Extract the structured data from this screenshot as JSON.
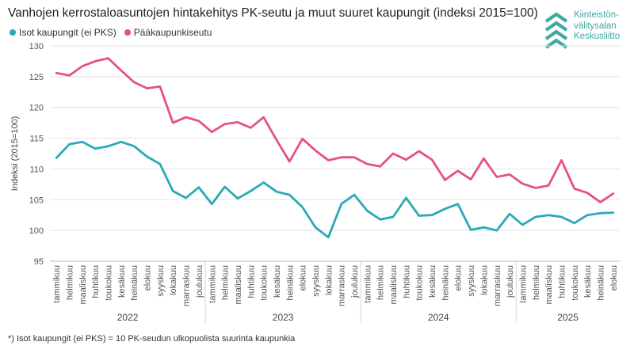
{
  "chart_data": {
    "type": "line",
    "title": "Vanhojen kerrostaloasuntojen hintakehitys PK-seutu ja muut suuret kaupungit (indeksi 2015=100)",
    "xlabel": "",
    "ylabel": "Indeksi (2015=100)",
    "ylim": [
      95,
      130
    ],
    "yticks": [
      95,
      100,
      105,
      110,
      115,
      120,
      125,
      130
    ],
    "grid": true,
    "legend_position": "top-left",
    "categories": [
      "tammikuu",
      "helmikuu",
      "maaliskuu",
      "huhtikuu",
      "toukokuu",
      "kesäkuu",
      "heinäkuu",
      "elokuu",
      "syyskuu",
      "lokakuu",
      "marraskuu",
      "joulukuu",
      "tammikuu",
      "helmikuu",
      "maaliskuu",
      "huhtikuu",
      "toukokuu",
      "kesäkuu",
      "heinäkuu",
      "elokuu",
      "syyskuu",
      "lokakuu",
      "marraskuu",
      "joulukuu",
      "tammikuu",
      "helmikuu",
      "maaliskuu",
      "huhtikuu",
      "toukokuu",
      "kesäkuu",
      "heinäkuu",
      "elokuu",
      "syyskuu",
      "lokakuu",
      "marraskuu",
      "joulukuu",
      "tammikuu",
      "helmikuu",
      "maaliskuu",
      "huhtikuu",
      "toukokuu",
      "kesäkuu",
      "heinäkuu",
      "elokuu"
    ],
    "years": [
      {
        "label": "2022",
        "months": 12
      },
      {
        "label": "2023",
        "months": 12
      },
      {
        "label": "2024",
        "months": 12
      },
      {
        "label": "2025",
        "months": 8
      }
    ],
    "series": [
      {
        "name": "Isot kaupungit (ei PKS)",
        "color": "#2aa9b6",
        "values": [
          111.8,
          114.0,
          114.4,
          113.3,
          113.7,
          114.4,
          113.7,
          112.0,
          110.8,
          106.4,
          105.3,
          107.0,
          104.3,
          107.1,
          105.2,
          106.4,
          107.8,
          106.3,
          105.8,
          103.8,
          100.5,
          98.9,
          104.3,
          105.8,
          103.2,
          101.8,
          102.2,
          105.3,
          102.4,
          102.5,
          103.5,
          104.3,
          100.1,
          100.5,
          100.0,
          102.7,
          100.9,
          102.2,
          102.5,
          102.2,
          101.2,
          102.5,
          102.8,
          102.9
        ]
      },
      {
        "name": "Pääkaupunkiseutu",
        "color": "#e6508a",
        "values": [
          125.6,
          125.2,
          126.7,
          127.5,
          128.0,
          126.0,
          124.1,
          123.1,
          123.4,
          117.5,
          118.4,
          117.8,
          116.0,
          117.3,
          117.6,
          116.7,
          118.4,
          114.7,
          111.2,
          114.9,
          113.0,
          111.4,
          111.9,
          111.9,
          110.8,
          110.4,
          112.5,
          111.5,
          112.9,
          111.5,
          108.2,
          109.7,
          108.3,
          111.7,
          108.7,
          109.1,
          107.6,
          106.9,
          107.3,
          111.4,
          106.8,
          106.1,
          104.6,
          106.0
        ]
      }
    ]
  },
  "legend": {
    "items": [
      {
        "label": "Isot kaupungit (ei PKS)",
        "color": "#2aa9b6"
      },
      {
        "label": "Pääkaupunkiseutu",
        "color": "#e6508a"
      }
    ]
  },
  "logo": {
    "line1": "Kiinteistön-",
    "line2": "välitysalan",
    "line3": "Keskusliitto",
    "color": "#3ea8a4",
    "icon": "chevron-stack-icon"
  },
  "footnote": "*) Isot kaupungit (ei PKS) = 10 PK-seudun ulkopuolista suurinta kaupunkia"
}
